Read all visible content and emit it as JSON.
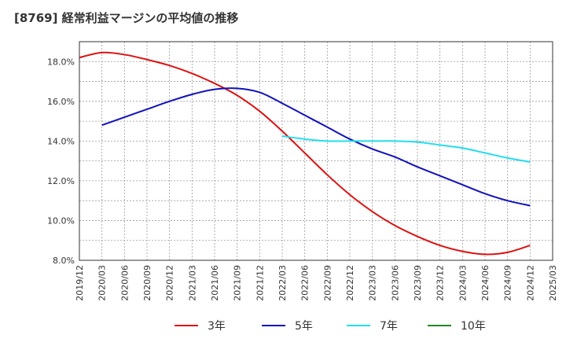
{
  "chart_data": {
    "type": "line",
    "title": "[8769]  経常利益マージンの平均値の推移",
    "xlabel": "",
    "ylabel": "",
    "x_ticks": [
      "2019/12",
      "2020/03",
      "2020/06",
      "2020/09",
      "2020/12",
      "2021/03",
      "2021/06",
      "2021/09",
      "2021/12",
      "2022/03",
      "2022/06",
      "2022/09",
      "2022/12",
      "2023/03",
      "2023/06",
      "2023/09",
      "2023/12",
      "2024/03",
      "2024/06",
      "2024/09",
      "2024/12",
      "2025/03"
    ],
    "y_ticks": [
      "8.0%",
      "10.0%",
      "12.0%",
      "14.0%",
      "16.0%",
      "18.0%"
    ],
    "ylim": [
      8,
      19
    ],
    "grid": true,
    "legend_position": "bottom",
    "series": [
      {
        "name": "3年",
        "color": "#dd1111",
        "x": [
          0,
          1,
          2,
          3,
          4,
          5,
          6,
          7,
          8,
          9,
          10,
          11,
          12,
          13,
          14,
          15,
          16,
          17,
          18,
          19,
          20
        ],
        "values": [
          18.2,
          18.45,
          18.35,
          18.1,
          17.8,
          17.4,
          16.9,
          16.3,
          15.5,
          14.5,
          13.4,
          12.3,
          11.3,
          10.45,
          9.75,
          9.2,
          8.75,
          8.45,
          8.3,
          8.4,
          8.75
        ]
      },
      {
        "name": "5年",
        "color": "#1111bb",
        "x": [
          1,
          2,
          3,
          4,
          5,
          6,
          7,
          8,
          9,
          10,
          11,
          12,
          13,
          14,
          15,
          16,
          17,
          18,
          19,
          20
        ],
        "values": [
          14.8,
          15.2,
          15.6,
          16.0,
          16.35,
          16.6,
          16.65,
          16.45,
          15.9,
          15.3,
          14.7,
          14.1,
          13.6,
          13.2,
          12.7,
          12.25,
          11.8,
          11.35,
          11.0,
          10.75
        ]
      },
      {
        "name": "7年",
        "color": "#22ddee",
        "x": [
          9,
          10,
          11,
          12,
          13,
          14,
          15,
          16,
          17,
          18,
          19,
          20
        ],
        "values": [
          14.25,
          14.1,
          14.0,
          14.0,
          14.0,
          14.0,
          13.95,
          13.8,
          13.65,
          13.4,
          13.15,
          12.95
        ]
      },
      {
        "name": "10年",
        "color": "#228822",
        "x": [],
        "values": []
      }
    ]
  }
}
